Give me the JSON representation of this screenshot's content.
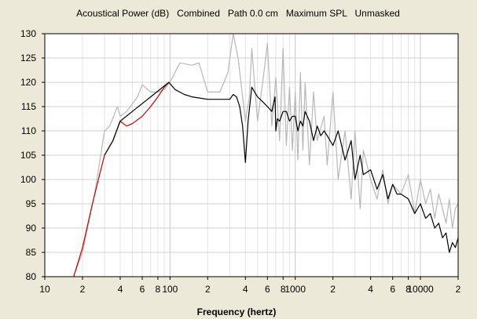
{
  "chart_data": {
    "type": "line",
    "title": "Acoustical Power (dB)   Combined   Path 0.0 cm   Maximum SPL   Unmasked",
    "xlabel": "Frequency (hertz)",
    "ylabel": "",
    "x_scale": "log",
    "xlim": [
      10,
      20000
    ],
    "ylim": [
      80,
      130
    ],
    "grid": true,
    "legend": "none",
    "y_ticks": [
      "80",
      "85",
      "90",
      "95",
      "100",
      "105",
      "110",
      "115",
      "120",
      "125",
      "130"
    ],
    "x_ticks": [
      {
        "value": 10,
        "label": "10"
      },
      {
        "value": 20,
        "label": "2"
      },
      {
        "value": 40,
        "label": "4"
      },
      {
        "value": 60,
        "label": "6"
      },
      {
        "value": 80,
        "label": "8"
      },
      {
        "value": 100,
        "label": "100"
      },
      {
        "value": 200,
        "label": "2"
      },
      {
        "value": 400,
        "label": "4"
      },
      {
        "value": 600,
        "label": "6"
      },
      {
        "value": 800,
        "label": "8"
      },
      {
        "value": 1000,
        "label": "1000"
      },
      {
        "value": 2000,
        "label": "2"
      },
      {
        "value": 4000,
        "label": "4"
      },
      {
        "value": 6000,
        "label": "6"
      },
      {
        "value": 8000,
        "label": "8"
      },
      {
        "value": 10000,
        "label": "10000"
      },
      {
        "value": 20000,
        "label": "2"
      }
    ],
    "series": [
      {
        "color": "#b8b8b8",
        "x": [
          17,
          20,
          25,
          30,
          33,
          38,
          40,
          45,
          55,
          60,
          70,
          80,
          90,
          100,
          120,
          150,
          170,
          200,
          250,
          290,
          320,
          350,
          400,
          430,
          450,
          500,
          550,
          600,
          650,
          700,
          750,
          800,
          850,
          900,
          950,
          1000,
          1050,
          1100,
          1150,
          1200,
          1300,
          1400,
          1500,
          1700,
          1800,
          2000,
          2200,
          2500,
          2800,
          3000,
          3300,
          3500,
          4000,
          4500,
          5000,
          5500,
          6000,
          7000,
          8000,
          9000,
          10000,
          11000,
          12000,
          13000,
          14000,
          15000,
          16000,
          17000,
          18000,
          19000,
          20000
        ],
        "values": [
          80,
          85,
          97,
          110,
          111,
          115,
          113,
          114,
          117,
          119.5,
          118,
          118,
          118.5,
          120,
          124,
          123.5,
          124,
          118,
          118,
          122,
          130,
          125,
          112,
          117,
          127,
          112,
          120,
          128,
          111,
          121,
          108,
          127,
          107,
          119,
          106,
          118,
          104,
          122,
          106,
          120,
          103,
          118,
          108,
          113,
          103,
          118,
          100,
          110,
          96,
          110,
          94,
          106,
          100,
          96,
          102,
          95,
          99,
          97,
          101,
          93,
          100,
          95,
          98,
          92,
          97,
          94,
          91,
          96,
          90,
          94,
          95
        ]
      },
      {
        "color": "#cc0000",
        "x": [
          17,
          20,
          24,
          28,
          30,
          35,
          40,
          45,
          50,
          60,
          70,
          80,
          90,
          98
        ],
        "values": [
          80,
          86,
          95,
          102,
          105,
          108,
          112,
          111,
          111.5,
          113,
          115,
          117,
          119,
          120
        ]
      },
      {
        "color": "#000000",
        "x": [
          30,
          35,
          40,
          50,
          70,
          98,
          110,
          130,
          150,
          200,
          250,
          300,
          320,
          340,
          360,
          380,
          400,
          420,
          450,
          500,
          550,
          600,
          650,
          690,
          700,
          720,
          750,
          800,
          850,
          900,
          950,
          1000,
          1050,
          1100,
          1150,
          1200,
          1300,
          1400,
          1500,
          1600,
          1700,
          1800,
          2000,
          2200,
          2500,
          2800,
          3000,
          3300,
          3500,
          4000,
          4500,
          5000,
          5500,
          6000,
          6500,
          7000,
          8000,
          9000,
          10000,
          11000,
          12000,
          13000,
          14000,
          15000,
          16000,
          17000,
          18000,
          19000,
          20000
        ],
        "values": [
          105,
          108,
          112,
          114,
          117,
          120,
          118.5,
          117.5,
          117,
          116.5,
          116.5,
          116.5,
          117.5,
          117,
          115,
          111,
          103.5,
          112,
          119,
          117,
          116,
          115,
          114,
          117,
          110,
          112.5,
          112,
          114,
          114,
          112,
          113,
          113,
          110,
          112,
          111,
          114,
          112,
          108,
          111,
          109,
          110,
          109,
          107,
          110,
          104,
          108,
          100,
          105,
          101,
          102,
          98,
          101,
          96,
          99,
          97,
          97,
          96,
          93,
          95,
          92,
          93,
          90,
          91,
          88,
          89,
          85,
          87,
          86,
          88
        ]
      }
    ]
  }
}
